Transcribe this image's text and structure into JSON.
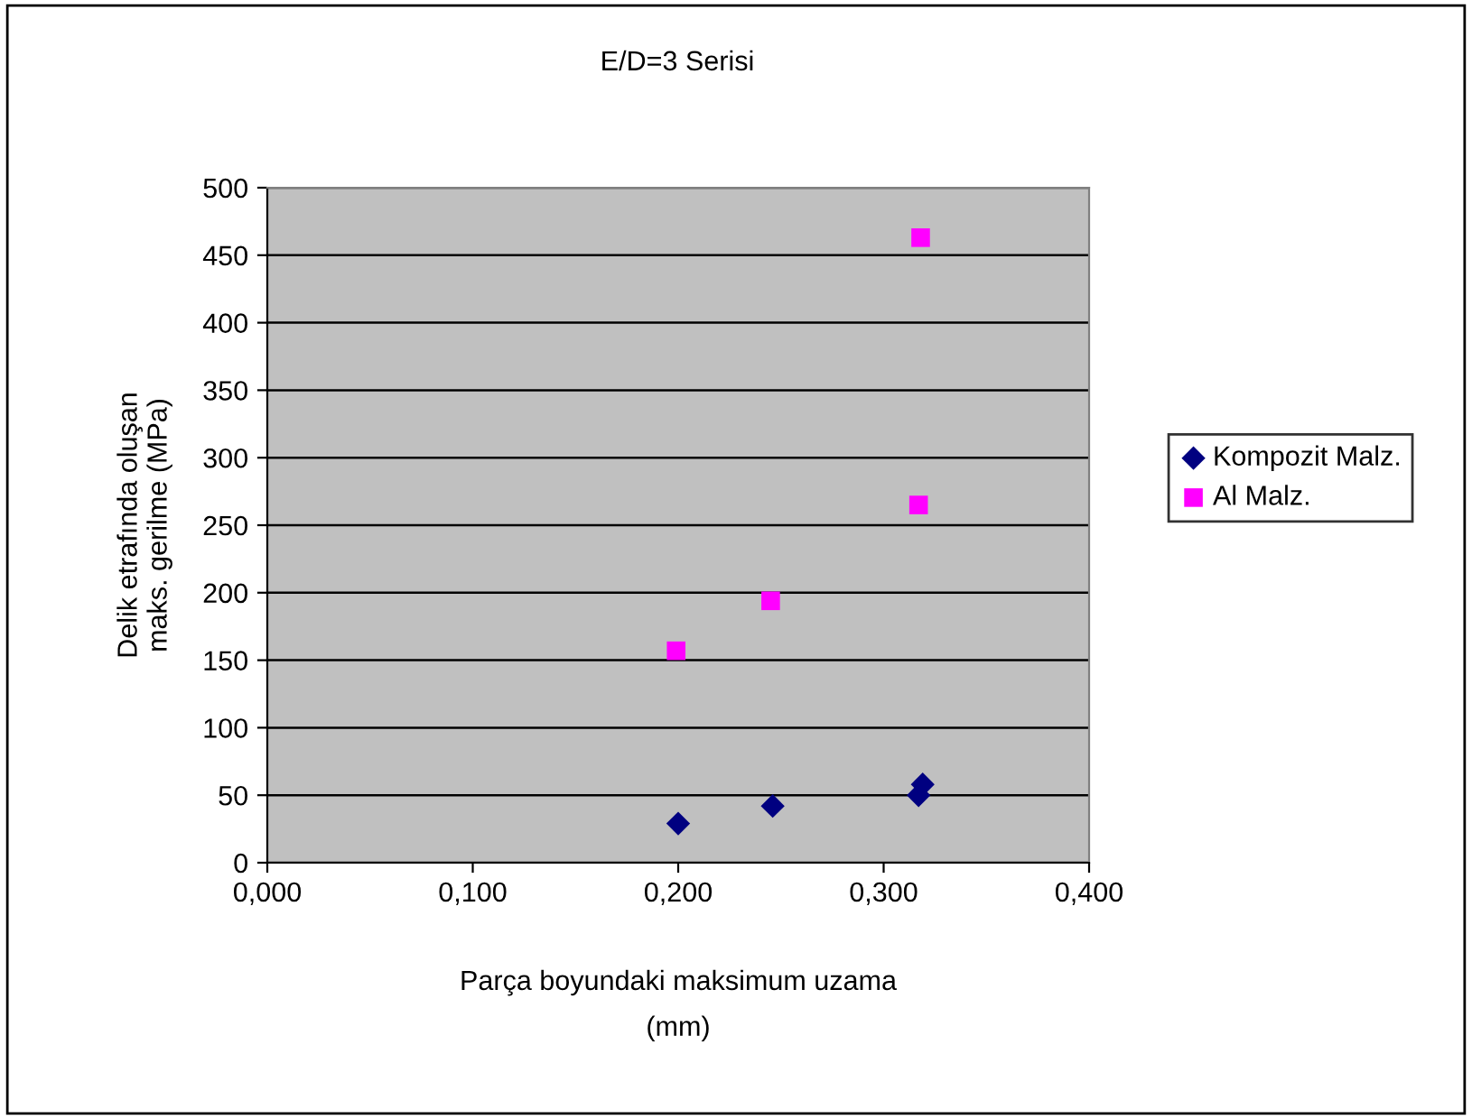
{
  "chart_data": {
    "type": "scatter",
    "title": "E/D=3 Serisi",
    "xlabel": "Parça boyundaki maksimum uzama\n(mm)",
    "ylabel": "Delik etrafında oluşan\nmaks. gerilme (MPa)",
    "series": [
      {
        "name": "Kompozit Malz.",
        "color": "#000080",
        "marker": "diamond",
        "x": [
          0.2,
          0.246,
          0.317,
          0.319
        ],
        "values": [
          29,
          42,
          50,
          58
        ]
      },
      {
        "name": "Al Malz.",
        "color": "#ff00ff",
        "marker": "square",
        "x": [
          0.199,
          0.245,
          0.317,
          0.318
        ],
        "values": [
          157,
          194,
          265,
          463
        ]
      }
    ],
    "xlim": [
      0,
      0.4
    ],
    "xticks": [
      {
        "value": 0,
        "label": "0,000"
      },
      {
        "value": 0.1,
        "label": "0,100"
      },
      {
        "value": 0.2,
        "label": "0,200"
      },
      {
        "value": 0.3,
        "label": "0,300"
      },
      {
        "value": 0.4,
        "label": "0,400"
      }
    ],
    "ylim": [
      0,
      500
    ],
    "yticks": [
      0,
      50,
      100,
      150,
      200,
      250,
      300,
      350,
      400,
      450,
      500
    ],
    "grid": "y",
    "legend": "right"
  }
}
